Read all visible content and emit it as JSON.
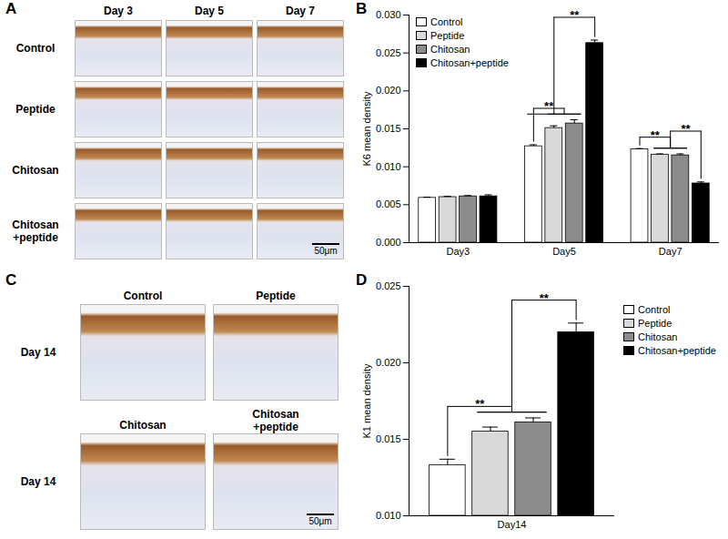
{
  "chart_data": [
    {
      "panel": "B",
      "type": "bar",
      "y_label": "K6 mean density",
      "categories": [
        "Day3",
        "Day5",
        "Day7"
      ],
      "series": [
        {
          "name": "Control",
          "color": "#ffffff",
          "values": [
            0.0059,
            0.0127,
            0.0123
          ],
          "errors": [
            0.0001,
            0.0002,
            0.0001
          ]
        },
        {
          "name": "Peptide",
          "color": "#d9d9d9",
          "values": [
            0.006,
            0.0151,
            0.0116
          ],
          "errors": [
            0.0001,
            0.0003,
            0.0001
          ]
        },
        {
          "name": "Chitosan",
          "color": "#8c8c8c",
          "values": [
            0.0061,
            0.0157,
            0.0115
          ],
          "errors": [
            0.0001,
            0.0005,
            0.0002
          ]
        },
        {
          "name": "Chitosan+peptide",
          "color": "#000000",
          "values": [
            0.0061,
            0.0263,
            0.0078
          ],
          "errors": [
            0.0002,
            0.0004,
            0.0002
          ]
        }
      ],
      "ylim": [
        0,
        0.03
      ],
      "yticks": [
        {
          "value": 0,
          "label": "0.000"
        },
        {
          "value": 0.005,
          "label": "0.005"
        },
        {
          "value": 0.01,
          "label": "0.010"
        },
        {
          "value": 0.015,
          "label": "0.015"
        },
        {
          "value": 0.02,
          "label": "0.020"
        },
        {
          "value": 0.025,
          "label": "0.025"
        },
        {
          "value": 0.03,
          "label": "0.030"
        }
      ],
      "legend": "top-left",
      "annotations": [
        {
          "text": "**",
          "category": "Day5",
          "left": [
            "Control"
          ],
          "right": [
            "Peptide",
            "Chitosan"
          ]
        },
        {
          "text": "**",
          "category": "Day5",
          "left": [
            "Control",
            "Peptide",
            "Chitosan"
          ],
          "right": [
            "Chitosan+peptide"
          ]
        },
        {
          "text": "**",
          "category": "Day7",
          "left": [
            "Control"
          ],
          "right": [
            "Peptide",
            "Chitosan"
          ]
        },
        {
          "text": "**",
          "category": "Day7",
          "left": [
            "Peptide",
            "Chitosan"
          ],
          "right": [
            "Chitosan+peptide"
          ]
        }
      ]
    },
    {
      "panel": "D",
      "type": "bar",
      "y_label": "K1 mean density",
      "categories": [
        "Day14"
      ],
      "series": [
        {
          "name": "Control",
          "color": "#ffffff",
          "values": [
            0.0133
          ],
          "errors": [
            0.0004
          ]
        },
        {
          "name": "Peptide",
          "color": "#d9d9d9",
          "values": [
            0.0155
          ],
          "errors": [
            0.0003
          ]
        },
        {
          "name": "Chitosan",
          "color": "#8c8c8c",
          "values": [
            0.0161
          ],
          "errors": [
            0.0003
          ]
        },
        {
          "name": "Chitosan+peptide",
          "color": "#000000",
          "values": [
            0.022
          ],
          "errors": [
            0.0006
          ]
        }
      ],
      "ylim": [
        0.01,
        0.025
      ],
      "yticks": [
        {
          "value": 0.01,
          "label": "0.010"
        },
        {
          "value": 0.015,
          "label": "0.015"
        },
        {
          "value": 0.02,
          "label": "0.020"
        },
        {
          "value": 0.025,
          "label": "0.025"
        }
      ],
      "legend": "right",
      "annotations": [
        {
          "text": "**",
          "category": "Day14",
          "left": [
            "Control"
          ],
          "right": [
            "Peptide",
            "Chitosan"
          ]
        },
        {
          "text": "**",
          "category": "Day14",
          "left": [
            "Peptide",
            "Chitosan"
          ],
          "right": [
            "Chitosan+peptide"
          ]
        }
      ]
    }
  ],
  "image_panels": [
    {
      "panel": "A",
      "columns": [
        "Day 3",
        "Day 5",
        "Day 7"
      ],
      "rows": [
        "Control",
        "Peptide",
        "Chitosan",
        "Chitosan\n+peptide"
      ],
      "scale_bar": "50μm"
    },
    {
      "panel": "C",
      "rows": [
        {
          "label": "Day 14",
          "columns": [
            "Control",
            "Peptide"
          ]
        },
        {
          "label": "Day 14",
          "columns": [
            "Chitosan",
            "Chitosan\n+peptide"
          ]
        }
      ],
      "scale_bar": "50μm"
    }
  ]
}
